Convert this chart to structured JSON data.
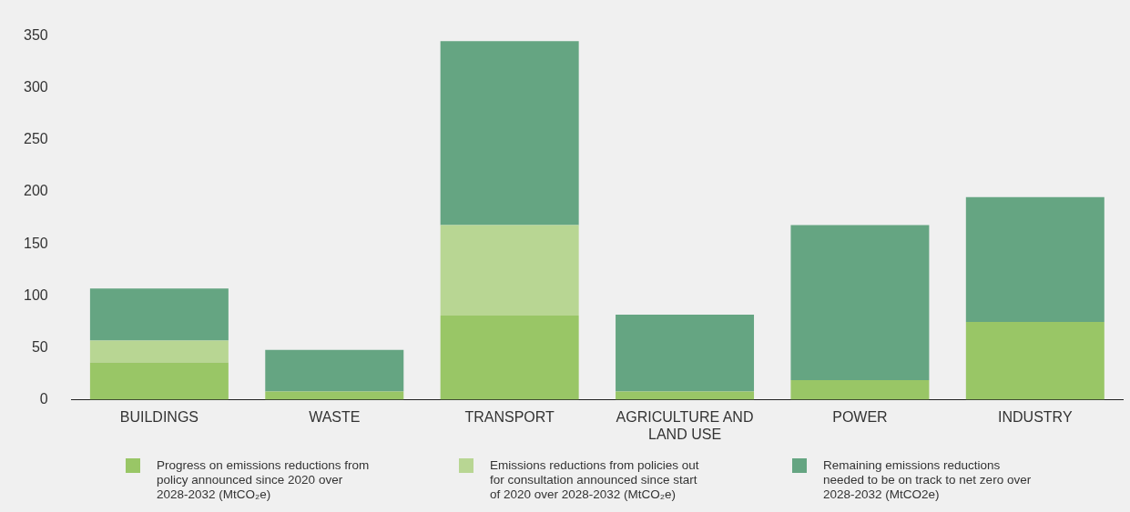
{
  "chart_data": {
    "type": "bar",
    "stacked": true,
    "categories": [
      "BUILDINGS",
      "WASTE",
      "TRANSPORT",
      "AGRICULTURE AND LAND USE",
      "POWER",
      "INDUSTRY"
    ],
    "series": [
      {
        "name": "Progress on emissions reductions from policy announced since 2020 over 2028-2032 (MtCO₂e)",
        "color": "#99c666",
        "values": [
          36,
          8,
          81,
          8,
          19,
          75
        ]
      },
      {
        "name": "Emissions reductions from policies out for consultation announced since start of 2020 over 2028-2032 (MtCO₂e)",
        "color": "#b8d693",
        "values": [
          21,
          0,
          87,
          0,
          0,
          0
        ]
      },
      {
        "name": "Remaining emissions reductions needed to be on track to net zero over 2028-2032 (MtCO2e)",
        "color": "#65a582",
        "values": [
          50,
          40,
          177,
          74,
          149,
          120
        ]
      }
    ],
    "ylim": [
      0,
      350
    ],
    "yticks": [
      0,
      50,
      100,
      150,
      200,
      250,
      300,
      350
    ],
    "grid": false,
    "legend": "bottom"
  }
}
